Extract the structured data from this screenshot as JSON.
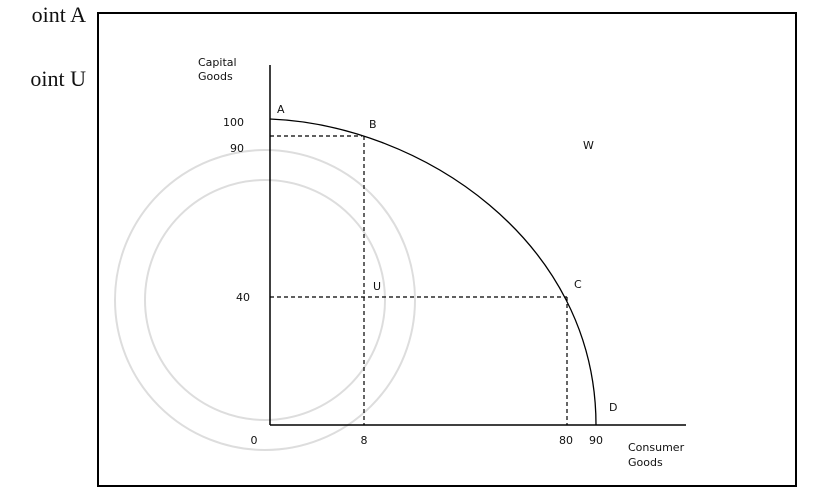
{
  "page_text": [
    "oint A",
    "oint U"
  ],
  "diagram": {
    "y_axis_label": [
      "Capital",
      "Goods"
    ],
    "x_axis_label": [
      "Consumer",
      "Goods"
    ],
    "y_ticks": [
      "100",
      "90",
      "40"
    ],
    "x_ticks": [
      "0",
      "8",
      "80",
      "90"
    ],
    "points": {
      "A": "A",
      "B": "B",
      "C": "C",
      "D": "D",
      "U": "U",
      "W": "W"
    }
  }
}
